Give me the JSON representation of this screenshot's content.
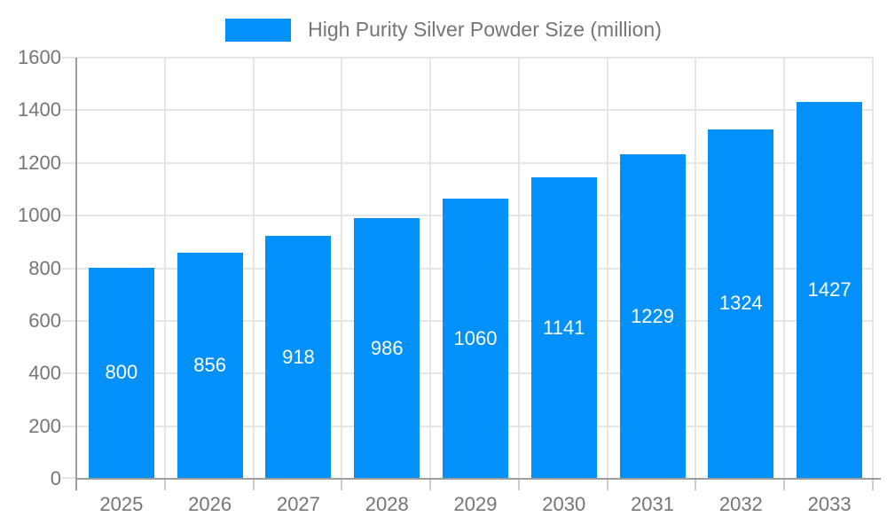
{
  "legend": {
    "label": "High Purity Silver Powder Size (million)"
  },
  "colors": {
    "background": "#ffffff",
    "bar": "#0291f9",
    "axis_line": "#9e9e9e",
    "gridline": "#e6e6e6",
    "tick": "#cccccc",
    "axis_label": "#757575",
    "value_label": "#ffffff"
  },
  "chart_data": {
    "type": "bar",
    "title": "",
    "categories": [
      "2025",
      "2026",
      "2027",
      "2028",
      "2029",
      "2030",
      "2031",
      "2032",
      "2033"
    ],
    "values": [
      800,
      856,
      918,
      986,
      1060,
      1141,
      1229,
      1324,
      1427
    ],
    "series_name": "High Purity Silver Powder Size (million)",
    "legend_entries": [
      "High Purity Silver Powder Size (million)"
    ],
    "legend_position": "top",
    "xlabel": "",
    "ylabel": "",
    "ylim": [
      0,
      1600
    ],
    "yticks": [
      0,
      200,
      400,
      600,
      800,
      1000,
      1200,
      1400,
      1600
    ],
    "grid": true,
    "value_labels": "inside-center"
  }
}
